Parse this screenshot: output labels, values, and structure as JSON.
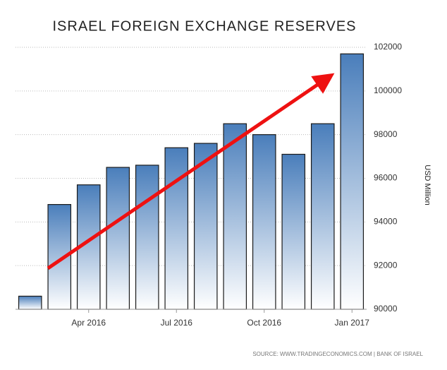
{
  "chart_data": {
    "type": "bar",
    "title": "ISRAEL FOREIGN EXCHANGE RESERVES",
    "y_axis_label": "USD Million",
    "source": "SOURCE: WWW.TRADINGECONOMICS.COM | BANK OF ISRAEL",
    "categories": [
      null,
      null,
      "Apr 2016",
      null,
      null,
      "Jul 2016",
      null,
      null,
      "Oct 2016",
      null,
      null,
      "Jan 2017"
    ],
    "values": [
      90600,
      94800,
      95700,
      96500,
      96600,
      97400,
      97600,
      98500,
      98000,
      97100,
      98500,
      101700
    ],
    "color": "#4a7ebb",
    "ylim": [
      90000,
      102000
    ],
    "yticks": [
      90000,
      92000,
      94000,
      96000,
      98000,
      100000,
      102000
    ],
    "grid": true,
    "y_axis_side": "right"
  }
}
